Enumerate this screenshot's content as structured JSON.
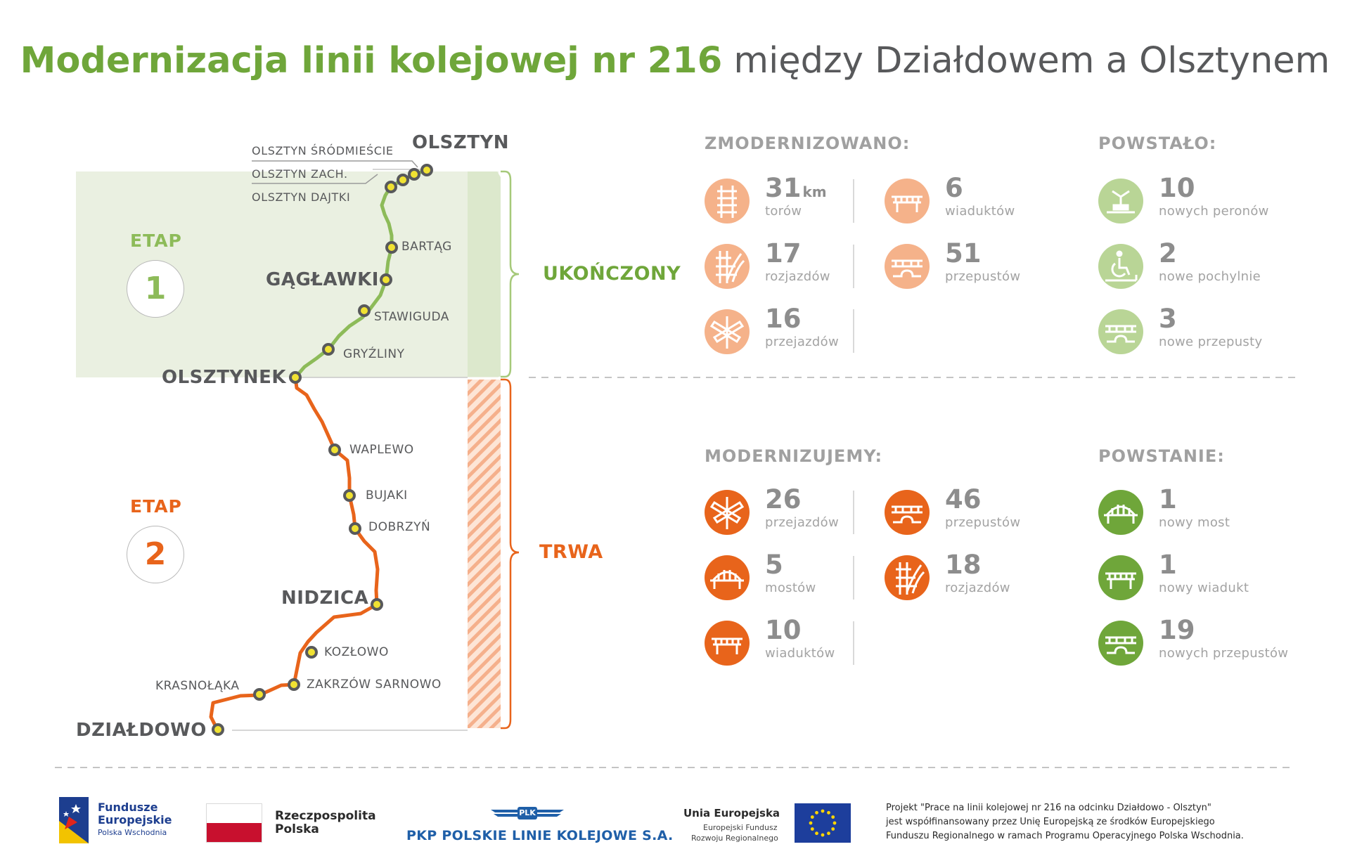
{
  "title": {
    "green": "Modernizacja linii kolejowej nr 216",
    "dark": " między Działdowem a Olsztynem"
  },
  "stages": [
    {
      "label": "ETAP",
      "number": "1",
      "status": "UKOŃCZONY",
      "color": "#8dbb59"
    },
    {
      "label": "ETAP",
      "number": "2",
      "status": "TRWA",
      "color": "#e8641b"
    }
  ],
  "stations": {
    "olsztyn": "OLSZTYN",
    "srodmiescie": "OLSZTYN ŚRÓDMIEŚCIE",
    "zach": "OLSZTYN ZACH.",
    "dajtki": "OLSZTYN DAJTKI",
    "bartag": "BARTĄG",
    "gaglawki": "GĄGŁAWKI",
    "stawiguda": "STAWIGUDA",
    "gryzliny": "GRYŹLINY",
    "olsztynek": "OLSZTYNEK",
    "waplewo": "WAPLEWO",
    "bujaki": "BUJAKI",
    "dobrzyn": "DOBRZYŃ",
    "nidzica": "NIDZICA",
    "kozlowo": "KOZŁOWO",
    "zakrzow": "ZAKRZÓW SARNOWO",
    "krasnolaka": "KRASNOŁĄKA",
    "dzialdowo": "DZIAŁDOWO"
  },
  "sections": {
    "zmodernizowano": {
      "heading": "ZMODERNIZOWANO:",
      "color": "#f5b28a",
      "items": [
        {
          "value": "31",
          "unit": "km",
          "label": "torów",
          "icon": "track-icon"
        },
        {
          "value": "6",
          "label": "wiaduktów",
          "icon": "viaduct-icon"
        },
        {
          "value": "17",
          "label": "rozjazdów",
          "icon": "switch-icon"
        },
        {
          "value": "51",
          "label": "przepustów",
          "icon": "culvert-icon"
        },
        {
          "value": "16",
          "label": "przejazdów",
          "icon": "crossing-icon"
        }
      ]
    },
    "powstalo": {
      "heading": "POWSTAŁO:",
      "color": "#b9d596",
      "items": [
        {
          "value": "10",
          "label": "nowych peronów",
          "icon": "platform-icon"
        },
        {
          "value": "2",
          "label": "nowe pochylnie",
          "icon": "wheelchair-ramp-icon"
        },
        {
          "value": "3",
          "label": "nowe przepusty",
          "icon": "culvert-icon"
        }
      ]
    },
    "modernizujemy": {
      "heading": "MODERNIZUJEMY:",
      "color": "#e8641b",
      "items": [
        {
          "value": "26",
          "label": "przejazdów",
          "icon": "crossing-icon"
        },
        {
          "value": "46",
          "label": "przepustów",
          "icon": "culvert-icon"
        },
        {
          "value": "5",
          "label": "mostów",
          "icon": "bridge-icon"
        },
        {
          "value": "18",
          "label": "rozjazdów",
          "icon": "switch-icon"
        },
        {
          "value": "10",
          "label": "wiaduktów",
          "icon": "viaduct-icon"
        }
      ]
    },
    "powstanie": {
      "heading": "POWSTANIE:",
      "color": "#6fa63a",
      "items": [
        {
          "value": "1",
          "label": "nowy most",
          "icon": "bridge-icon"
        },
        {
          "value": "1",
          "label": "nowy wiadukt",
          "icon": "viaduct-icon"
        },
        {
          "value": "19",
          "label": "nowych przepustów",
          "icon": "culvert-icon"
        }
      ]
    }
  },
  "footer": {
    "fe": {
      "line1": "Fundusze",
      "line2": "Europejskie",
      "line3": "Polska Wschodnia"
    },
    "rp": {
      "line1": "Rzeczpospolita",
      "line2": "Polska"
    },
    "plk": {
      "badge": "PLK",
      "name": "PKP POLSKIE LINIE KOLEJOWE S.A."
    },
    "ue": {
      "line1": "Unia Europejska",
      "line2": "Europejski Fundusz",
      "line3": "Rozwoju Regionalnego"
    },
    "note": {
      "line1": "Projekt \"Prace na linii kolejowej nr 216 na odcinku Działdowo - Olsztyn\"",
      "line2": "jest współfinansowany przez Unię Europejską ze środków Europejskiego",
      "line3": "Funduszu Regionalnego w ramach Programu Operacyjnego Polska Wschodnia."
    }
  }
}
